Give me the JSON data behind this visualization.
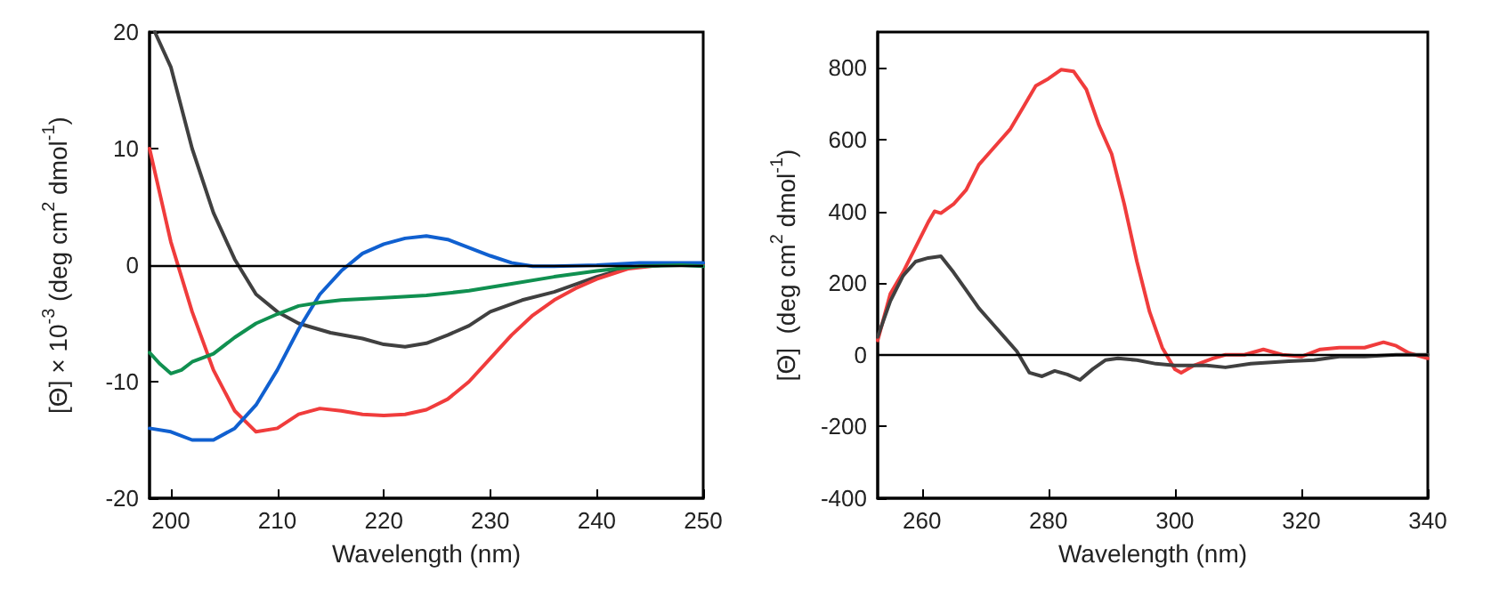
{
  "chart_data": [
    {
      "type": "line",
      "xlabel": "Wavelength (nm)",
      "ylabel": "[Θ] × 10$^{-3}$ (deg cm$^{2}$ dmol$^{-1}$)",
      "xlim": [
        198,
        250
      ],
      "xticks": [
        200,
        210,
        220,
        230,
        240,
        250
      ],
      "ylim": [
        -20,
        20
      ],
      "yticks": [
        -20,
        -10,
        0,
        10,
        20
      ],
      "grid": false,
      "marker": "none",
      "line_style": "solid",
      "ref_lines": [
        {
          "axis": "y",
          "value": 0,
          "color": "#000000"
        }
      ],
      "series": [
        {
          "color": "#404040",
          "x": [
            198.5,
            200,
            202,
            204,
            206,
            208,
            210,
            212,
            215,
            218,
            220,
            222,
            224,
            226,
            228,
            230,
            233,
            236,
            240,
            243,
            246,
            250
          ],
          "values": [
            20,
            17,
            10,
            4.5,
            0.5,
            -2.5,
            -4,
            -5,
            -5.8,
            -6.3,
            -6.8,
            -7,
            -6.7,
            -6,
            -5.2,
            -4,
            -3,
            -2.3,
            -1,
            -0.2,
            0,
            0.1
          ]
        },
        {
          "color": "#f03c3c",
          "x": [
            198,
            199,
            200,
            201,
            202,
            204,
            206,
            208,
            210,
            212,
            214,
            216,
            218,
            220,
            222,
            224,
            226,
            228,
            230,
            232,
            234,
            236,
            238,
            240,
            243,
            246,
            250
          ],
          "values": [
            10,
            6,
            2,
            -1,
            -4,
            -9,
            -12.5,
            -14.3,
            -14,
            -12.8,
            -12.3,
            -12.5,
            -12.8,
            -12.9,
            -12.8,
            -12.4,
            -11.5,
            -10,
            -8,
            -6,
            -4.3,
            -3,
            -2,
            -1.2,
            -0.3,
            0,
            0
          ]
        },
        {
          "color": "#1060d0",
          "x": [
            198,
            200,
            202,
            204,
            206,
            208,
            210,
            212,
            214,
            216,
            218,
            220,
            222,
            224,
            226,
            228,
            230,
            232,
            234,
            236,
            240,
            244,
            250
          ],
          "values": [
            -14,
            -14.3,
            -15,
            -15,
            -14,
            -12,
            -9,
            -5.5,
            -2.5,
            -0.5,
            1,
            1.8,
            2.3,
            2.5,
            2.2,
            1.5,
            0.8,
            0.2,
            -0.1,
            -0.1,
            0,
            0.2,
            0.2
          ]
        },
        {
          "color": "#109050",
          "x": [
            198,
            199,
            200,
            201,
            202,
            204,
            206,
            208,
            210,
            212,
            214,
            216,
            220,
            224,
            228,
            232,
            236,
            240,
            244,
            248,
            250
          ],
          "values": [
            -7.5,
            -8.5,
            -9.3,
            -9,
            -8.3,
            -7.6,
            -6.2,
            -5,
            -4.2,
            -3.5,
            -3.2,
            -3,
            -2.8,
            -2.6,
            -2.2,
            -1.6,
            -1,
            -0.5,
            -0.1,
            0,
            -0.1
          ]
        }
      ]
    },
    {
      "type": "line",
      "xlabel": "Wavelength (nm)",
      "ylabel": "[Θ]  (deg cm$^{2}$ dmol$^{-1}$)",
      "xlim": [
        253,
        340
      ],
      "xticks": [
        260,
        280,
        300,
        320,
        340
      ],
      "ylim": [
        -400,
        900
      ],
      "yticks": [
        -400,
        -200,
        0,
        200,
        400,
        600,
        800
      ],
      "grid": false,
      "marker": "none",
      "line_style": "solid",
      "ref_lines": [
        {
          "axis": "y",
          "value": 0,
          "color": "#000000"
        }
      ],
      "series": [
        {
          "color": "#f03c3c",
          "x": [
            253,
            255,
            257,
            259,
            261,
            262,
            263,
            265,
            267,
            269,
            271,
            274,
            276,
            278,
            280,
            282,
            284,
            286,
            288,
            290,
            292,
            294,
            296,
            298,
            300,
            301,
            303,
            306,
            308,
            311,
            314,
            317,
            320,
            323,
            326,
            330,
            333,
            335,
            337,
            340
          ],
          "values": [
            40,
            170,
            230,
            300,
            370,
            400,
            395,
            420,
            460,
            530,
            570,
            630,
            690,
            750,
            770,
            795,
            790,
            740,
            640,
            560,
            420,
            260,
            120,
            20,
            -40,
            -50,
            -30,
            -10,
            0,
            0,
            15,
            0,
            -5,
            15,
            20,
            20,
            35,
            25,
            5,
            -10
          ]
        },
        {
          "color": "#404040",
          "x": [
            253,
            255,
            257,
            259,
            261,
            263,
            265,
            267,
            269,
            271,
            273,
            275,
            277,
            279,
            281,
            283,
            285,
            287,
            289,
            291,
            294,
            297,
            300,
            305,
            308,
            312,
            318,
            322,
            326,
            330,
            335,
            340
          ],
          "values": [
            50,
            150,
            220,
            260,
            270,
            275,
            230,
            180,
            130,
            90,
            50,
            10,
            -50,
            -60,
            -45,
            -55,
            -70,
            -40,
            -15,
            -10,
            -15,
            -25,
            -30,
            -30,
            -35,
            -25,
            -18,
            -15,
            -5,
            -5,
            0,
            0
          ]
        }
      ]
    }
  ]
}
